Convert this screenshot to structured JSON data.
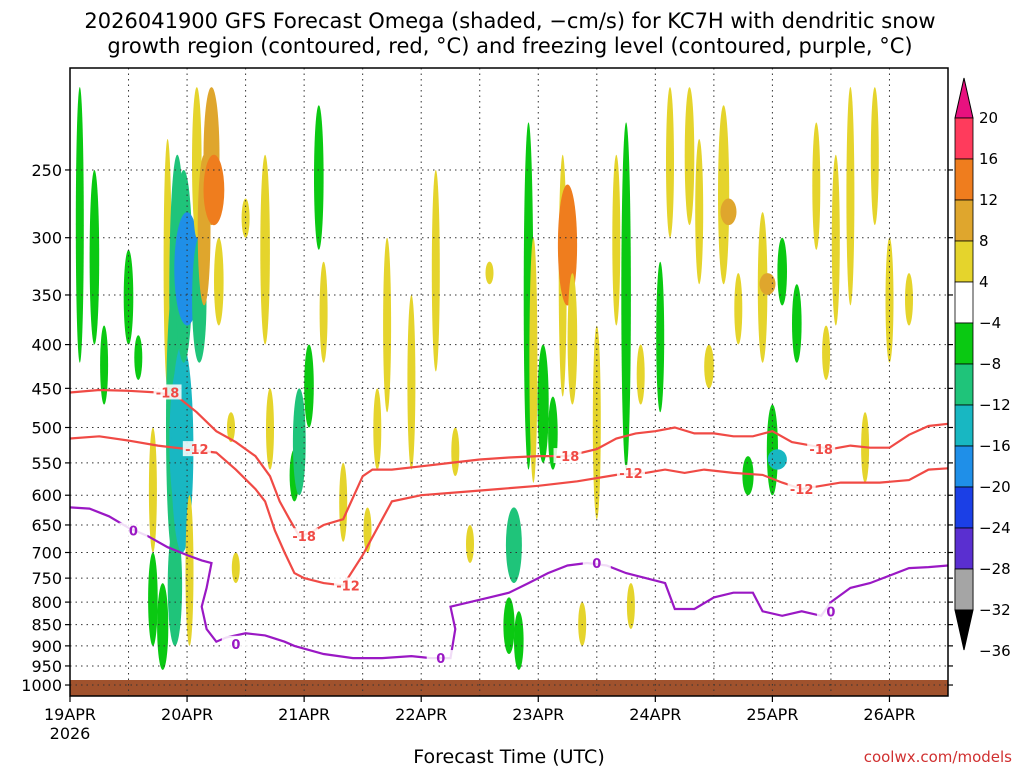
{
  "chart_data": {
    "type": "heatmap",
    "title_lines": [
      "2026041900 GFS Forecast Omega (shaded, −cm/s) for KC7H with dendritic snow",
      "growth region (contoured, red, °C) and freezing level (contoured, purple, °C)"
    ],
    "xlabel": "Forecast Time (UTC)",
    "credit": "coolwx.com/models",
    "x_range_hours": [
      0,
      180
    ],
    "x_ticks": [
      {
        "hour": 0,
        "label": "19APR",
        "sublabel": "2026"
      },
      {
        "hour": 24,
        "label": "20APR"
      },
      {
        "hour": 48,
        "label": "21APR"
      },
      {
        "hour": 72,
        "label": "22APR"
      },
      {
        "hour": 96,
        "label": "23APR"
      },
      {
        "hour": 120,
        "label": "24APR"
      },
      {
        "hour": 144,
        "label": "25APR"
      },
      {
        "hour": 168,
        "label": "26APR"
      }
    ],
    "y_range_hpa": [
      1030,
      190
    ],
    "y_ticks": [
      250,
      300,
      350,
      400,
      450,
      500,
      550,
      600,
      650,
      700,
      750,
      800,
      850,
      900,
      950,
      1000
    ],
    "y_scale": "log-pressure",
    "grid": true,
    "colorbar": {
      "levels": [
        "20",
        "16",
        "12",
        "8",
        "4",
        "−4",
        "−8",
        "−12",
        "−16",
        "−20",
        "−24",
        "−28",
        "−32",
        "−36"
      ],
      "colors": [
        "#ff3b5c",
        "#ef7d1e",
        "#dfa62d",
        "#e5d42c",
        "#ffffff",
        "#0ac912",
        "#1fc47a",
        "#18b7c2",
        "#1f8fe8",
        "#1b3fe6",
        "#5a2fd0",
        "#8a12c8",
        "#a5a5a5"
      ],
      "over_color": "#e8117f",
      "under_color": "#000000"
    },
    "shading": [
      {
        "h": 2,
        "p1": 200,
        "p2": 420,
        "v": -5
      },
      {
        "h": 5,
        "p1": 250,
        "p2": 400,
        "v": -6
      },
      {
        "h": 7,
        "p1": 380,
        "p2": 470,
        "v": -5
      },
      {
        "h": 12,
        "p1": 310,
        "p2": 400,
        "v": -6
      },
      {
        "h": 14,
        "p1": 390,
        "p2": 440,
        "v": -5
      },
      {
        "h": 17,
        "p1": 500,
        "p2": 700,
        "v": 5
      },
      {
        "h": 17,
        "p1": 700,
        "p2": 900,
        "v": -6
      },
      {
        "h": 19,
        "p1": 760,
        "p2": 960,
        "v": -7
      },
      {
        "h": 20,
        "p1": 230,
        "p2": 450,
        "v": 5
      },
      {
        "h": 21,
        "p1": 350,
        "p2": 700,
        "v": -8
      },
      {
        "h": 21.5,
        "p1": 650,
        "p2": 900,
        "v": -9
      },
      {
        "h": 22,
        "p1": 240,
        "p2": 500,
        "v": -10
      },
      {
        "h": 22.5,
        "p1": 420,
        "p2": 640,
        "v": -13
      },
      {
        "h": 23,
        "p1": 400,
        "p2": 700,
        "v": -14
      },
      {
        "h": 23.3,
        "p1": 250,
        "p2": 420,
        "v": -11
      },
      {
        "h": 24,
        "p1": 280,
        "p2": 380,
        "v": -16
      },
      {
        "h": 24.5,
        "p1": 600,
        "p2": 900,
        "v": 5
      },
      {
        "h": 26,
        "p1": 200,
        "p2": 300,
        "v": 6
      },
      {
        "h": 26.5,
        "p1": 300,
        "p2": 420,
        "v": -9
      },
      {
        "h": 27.5,
        "p1": 240,
        "p2": 360,
        "v": 8
      },
      {
        "h": 29,
        "p1": 200,
        "p2": 290,
        "v": 10
      },
      {
        "h": 29.5,
        "p1": 240,
        "p2": 290,
        "v": 13
      },
      {
        "h": 30.5,
        "p1": 300,
        "p2": 380,
        "v": 6
      },
      {
        "h": 33,
        "p1": 480,
        "p2": 520,
        "v": 5
      },
      {
        "h": 34,
        "p1": 700,
        "p2": 760,
        "v": 5
      },
      {
        "h": 36,
        "p1": 270,
        "p2": 300,
        "v": 5
      },
      {
        "h": 40,
        "p1": 240,
        "p2": 400,
        "v": 6
      },
      {
        "h": 41,
        "p1": 450,
        "p2": 560,
        "v": 5
      },
      {
        "h": 46,
        "p1": 530,
        "p2": 610,
        "v": -6
      },
      {
        "h": 47,
        "p1": 450,
        "p2": 600,
        "v": -8
      },
      {
        "h": 49,
        "p1": 400,
        "p2": 500,
        "v": -6
      },
      {
        "h": 51,
        "p1": 210,
        "p2": 310,
        "v": -6
      },
      {
        "h": 52,
        "p1": 320,
        "p2": 420,
        "v": 5
      },
      {
        "h": 56,
        "p1": 550,
        "p2": 680,
        "v": 5
      },
      {
        "h": 61,
        "p1": 620,
        "p2": 700,
        "v": 5
      },
      {
        "h": 63,
        "p1": 450,
        "p2": 560,
        "v": 5
      },
      {
        "h": 65,
        "p1": 300,
        "p2": 480,
        "v": 5
      },
      {
        "h": 70,
        "p1": 350,
        "p2": 560,
        "v": 5
      },
      {
        "h": 75,
        "p1": 250,
        "p2": 430,
        "v": 5
      },
      {
        "h": 79,
        "p1": 500,
        "p2": 570,
        "v": 5
      },
      {
        "h": 82,
        "p1": 650,
        "p2": 720,
        "v": 5
      },
      {
        "h": 86,
        "p1": 320,
        "p2": 340,
        "v": 5
      },
      {
        "h": 90,
        "p1": 790,
        "p2": 920,
        "v": -7
      },
      {
        "h": 91,
        "p1": 620,
        "p2": 760,
        "v": -10
      },
      {
        "h": 92,
        "p1": 820,
        "p2": 960,
        "v": -6
      },
      {
        "h": 94,
        "p1": 220,
        "p2": 560,
        "v": -6
      },
      {
        "h": 95,
        "p1": 300,
        "p2": 580,
        "v": 5
      },
      {
        "h": 97,
        "p1": 400,
        "p2": 550,
        "v": -7
      },
      {
        "h": 99,
        "p1": 460,
        "p2": 560,
        "v": -6
      },
      {
        "h": 101,
        "p1": 240,
        "p2": 460,
        "v": 5
      },
      {
        "h": 102,
        "p1": 260,
        "p2": 360,
        "v": 12
      },
      {
        "h": 103,
        "p1": 330,
        "p2": 470,
        "v": 6
      },
      {
        "h": 105,
        "p1": 800,
        "p2": 900,
        "v": 5
      },
      {
        "h": 108,
        "p1": 380,
        "p2": 640,
        "v": 5
      },
      {
        "h": 112,
        "p1": 240,
        "p2": 380,
        "v": 5
      },
      {
        "h": 114,
        "p1": 220,
        "p2": 560,
        "v": -6
      },
      {
        "h": 115,
        "p1": 760,
        "p2": 860,
        "v": 5
      },
      {
        "h": 117,
        "p1": 400,
        "p2": 470,
        "v": 5
      },
      {
        "h": 121,
        "p1": 320,
        "p2": 480,
        "v": -5
      },
      {
        "h": 123,
        "p1": 200,
        "p2": 300,
        "v": 5
      },
      {
        "h": 127,
        "p1": 200,
        "p2": 290,
        "v": 6
      },
      {
        "h": 129,
        "p1": 230,
        "p2": 340,
        "v": 5
      },
      {
        "h": 131,
        "p1": 400,
        "p2": 450,
        "v": 6
      },
      {
        "h": 134,
        "p1": 210,
        "p2": 340,
        "v": 7
      },
      {
        "h": 135,
        "p1": 270,
        "p2": 290,
        "v": 10
      },
      {
        "h": 137,
        "p1": 330,
        "p2": 400,
        "v": 5
      },
      {
        "h": 139,
        "p1": 540,
        "p2": 600,
        "v": -7
      },
      {
        "h": 142,
        "p1": 280,
        "p2": 420,
        "v": 6
      },
      {
        "h": 143,
        "p1": 330,
        "p2": 350,
        "v": 10
      },
      {
        "h": 144,
        "p1": 470,
        "p2": 600,
        "v": -7
      },
      {
        "h": 145,
        "p1": 530,
        "p2": 560,
        "v": -12
      },
      {
        "h": 146,
        "p1": 300,
        "p2": 360,
        "v": -6
      },
      {
        "h": 149,
        "p1": 340,
        "p2": 420,
        "v": -6
      },
      {
        "h": 153,
        "p1": 220,
        "p2": 310,
        "v": 5
      },
      {
        "h": 155,
        "p1": 380,
        "p2": 440,
        "v": 5
      },
      {
        "h": 157,
        "p1": 240,
        "p2": 380,
        "v": 5
      },
      {
        "h": 160,
        "p1": 200,
        "p2": 360,
        "v": 5
      },
      {
        "h": 163,
        "p1": 480,
        "p2": 580,
        "v": 5
      },
      {
        "h": 165,
        "p1": 200,
        "p2": 290,
        "v": 5
      },
      {
        "h": 168,
        "p1": 300,
        "p2": 420,
        "v": 5
      },
      {
        "h": 172,
        "p1": 330,
        "p2": 380,
        "v": 5
      }
    ],
    "contours": [
      {
        "name": "-18",
        "color": "#f04a45",
        "label": "-18",
        "label_at": [
          [
            20,
            455
          ],
          [
            48,
            670
          ],
          [
            102,
            540
          ],
          [
            154,
            530
          ]
        ],
        "points": [
          [
            0,
            455
          ],
          [
            6,
            452
          ],
          [
            12,
            453
          ],
          [
            18,
            455
          ],
          [
            22,
            460
          ],
          [
            26,
            480
          ],
          [
            30,
            505
          ],
          [
            34,
            520
          ],
          [
            38,
            540
          ],
          [
            41,
            570
          ],
          [
            43,
            610
          ],
          [
            45,
            640
          ],
          [
            47,
            670
          ],
          [
            49,
            665
          ],
          [
            52,
            650
          ],
          [
            56,
            640
          ],
          [
            60,
            570
          ],
          [
            62,
            560
          ],
          [
            66,
            560
          ],
          [
            72,
            555
          ],
          [
            78,
            550
          ],
          [
            84,
            545
          ],
          [
            90,
            542
          ],
          [
            96,
            540
          ],
          [
            102,
            540
          ],
          [
            108,
            530
          ],
          [
            112,
            515
          ],
          [
            116,
            508
          ],
          [
            120,
            505
          ],
          [
            124,
            500
          ],
          [
            128,
            508
          ],
          [
            132,
            508
          ],
          [
            136,
            512
          ],
          [
            140,
            512
          ],
          [
            144,
            505
          ],
          [
            148,
            520
          ],
          [
            152,
            525
          ],
          [
            156,
            530
          ],
          [
            160,
            525
          ],
          [
            164,
            528
          ],
          [
            168,
            528
          ],
          [
            172,
            510
          ],
          [
            176,
            498
          ],
          [
            180,
            495
          ]
        ]
      },
      {
        "name": "-12",
        "color": "#f04a45",
        "label": "-12",
        "label_at": [
          [
            26,
            530
          ],
          [
            57,
            765
          ],
          [
            115,
            565
          ],
          [
            150,
            590
          ]
        ],
        "points": [
          [
            0,
            515
          ],
          [
            6,
            512
          ],
          [
            12,
            518
          ],
          [
            18,
            525
          ],
          [
            24,
            530
          ],
          [
            30,
            535
          ],
          [
            34,
            560
          ],
          [
            38,
            590
          ],
          [
            40,
            610
          ],
          [
            42,
            660
          ],
          [
            44,
            700
          ],
          [
            46,
            740
          ],
          [
            48,
            750
          ],
          [
            52,
            760
          ],
          [
            56,
            765
          ],
          [
            60,
            705
          ],
          [
            64,
            640
          ],
          [
            66,
            610
          ],
          [
            72,
            600
          ],
          [
            80,
            595
          ],
          [
            88,
            590
          ],
          [
            96,
            585
          ],
          [
            104,
            578
          ],
          [
            112,
            568
          ],
          [
            118,
            565
          ],
          [
            122,
            560
          ],
          [
            126,
            565
          ],
          [
            130,
            560
          ],
          [
            136,
            565
          ],
          [
            142,
            568
          ],
          [
            146,
            580
          ],
          [
            150,
            590
          ],
          [
            154,
            585
          ],
          [
            158,
            580
          ],
          [
            166,
            580
          ],
          [
            172,
            576
          ],
          [
            176,
            560
          ],
          [
            180,
            558
          ]
        ]
      },
      {
        "name": "0",
        "color": "#9a18c4",
        "label": "0",
        "label_at": [
          [
            13,
            660
          ],
          [
            34,
            895
          ],
          [
            76,
            930
          ],
          [
            108,
            720
          ],
          [
            156,
            820
          ]
        ],
        "points": [
          [
            0,
            620
          ],
          [
            4,
            622
          ],
          [
            8,
            635
          ],
          [
            12,
            655
          ],
          [
            16,
            670
          ],
          [
            20,
            690
          ],
          [
            24,
            705
          ],
          [
            27,
            715
          ],
          [
            29,
            720
          ],
          [
            28,
            770
          ],
          [
            27,
            810
          ],
          [
            28,
            860
          ],
          [
            30,
            890
          ],
          [
            32,
            880
          ],
          [
            36,
            870
          ],
          [
            40,
            875
          ],
          [
            44,
            890
          ],
          [
            46,
            900
          ],
          [
            52,
            920
          ],
          [
            58,
            930
          ],
          [
            64,
            930
          ],
          [
            70,
            925
          ],
          [
            74,
            930
          ],
          [
            78,
            930
          ],
          [
            79,
            860
          ],
          [
            78,
            810
          ],
          [
            82,
            800
          ],
          [
            86,
            790
          ],
          [
            90,
            780
          ],
          [
            94,
            760
          ],
          [
            98,
            740
          ],
          [
            102,
            725
          ],
          [
            106,
            720
          ],
          [
            110,
            725
          ],
          [
            114,
            740
          ],
          [
            118,
            750
          ],
          [
            122,
            760
          ],
          [
            124,
            815
          ],
          [
            128,
            815
          ],
          [
            132,
            790
          ],
          [
            136,
            780
          ],
          [
            140,
            780
          ],
          [
            142,
            820
          ],
          [
            146,
            830
          ],
          [
            150,
            820
          ],
          [
            154,
            830
          ],
          [
            156,
            800
          ],
          [
            160,
            770
          ],
          [
            164,
            760
          ],
          [
            168,
            745
          ],
          [
            172,
            730
          ],
          [
            176,
            728
          ],
          [
            180,
            725
          ]
        ]
      }
    ]
  }
}
